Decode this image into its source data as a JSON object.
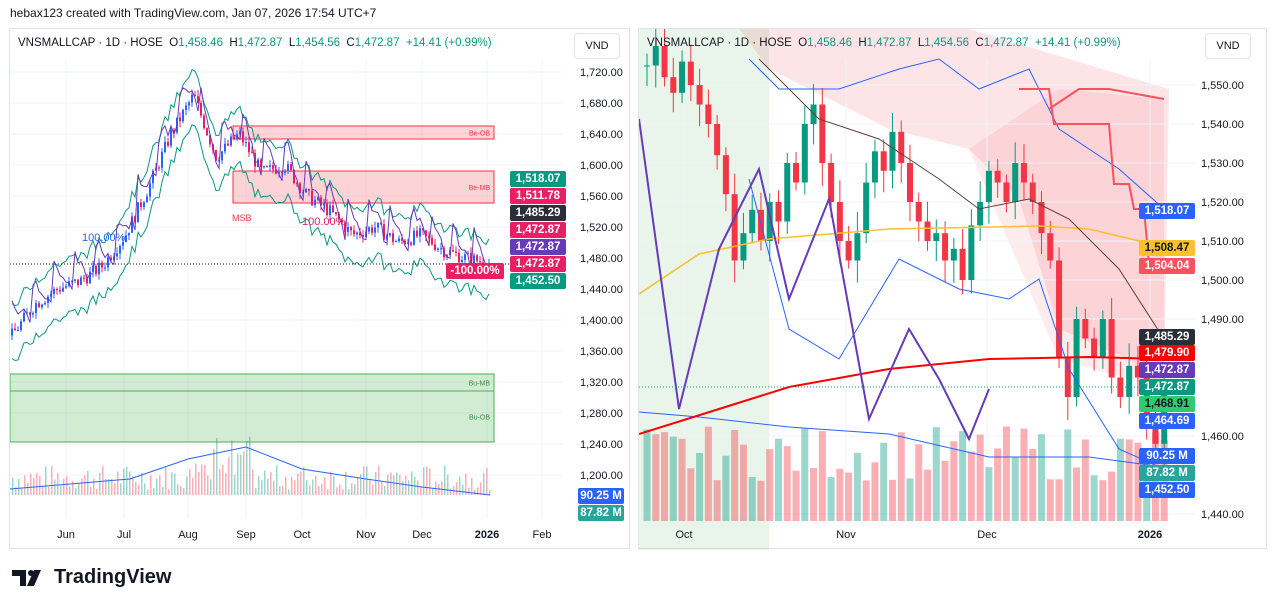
{
  "credit": "hebax123 created with TradingView.com, Jan 07, 2026 17:54 UTC+7",
  "legend": {
    "symbol_left": "VNSMALLCAP · 1D · HOSE",
    "symbol_right": "VNSMALLCAP · 1D · HOSE",
    "o_label": "O",
    "o": "1,458.46",
    "h_label": "H",
    "h": "1,472.87",
    "l_label": "L",
    "l": "1,454.56",
    "c_label": "C",
    "c": "1,472.87",
    "change": "+14.41 (+0.99%)"
  },
  "currency": "VND",
  "brand": "TradingView",
  "colors": {
    "up": "#089981",
    "down": "#f23645",
    "accent": "#2962ff"
  },
  "chart_data": [
    {
      "type": "candlestick",
      "panel": "left",
      "title": "VNSMALLCAP · 1D · HOSE",
      "x_ticks": [
        "Jun",
        "Jul",
        "Aug",
        "Sep",
        "Oct",
        "Nov",
        "Dec",
        "2026",
        "Feb"
      ],
      "y_ticks": [
        "1,720.00",
        "1,680.00",
        "1,640.00",
        "1,600.00",
        "1,560.00",
        "1,520.00",
        "1,480.00",
        "1,440.00",
        "1,400.00",
        "1,360.00",
        "1,320.00",
        "1,280.00",
        "1,240.00",
        "1,200.00"
      ],
      "ylim": [
        1180,
        1740
      ],
      "approx_close_anchors": [
        1380,
        1420,
        1440,
        1450,
        1470,
        1510,
        1570,
        1640,
        1690,
        1610,
        1640,
        1590,
        1600,
        1560,
        1540,
        1510,
        1520,
        1500,
        1510,
        1490,
        1480,
        1472.87
      ],
      "zones": [
        {
          "label": "Be-OB",
          "range": [
            1640,
            1630
          ]
        },
        {
          "label": "Be-MB",
          "range": [
            1587,
            1548
          ]
        },
        {
          "label": "Bu-MB",
          "range": [
            1331,
            1310
          ]
        },
        {
          "label": "Bu-OB",
          "range": [
            1310,
            1244
          ]
        }
      ],
      "annotations": [
        "100.00%",
        "MSB",
        "100.00%"
      ],
      "price_tags": [
        {
          "v": "1,518.07",
          "c": "#089981"
        },
        {
          "v": "1,511.78",
          "c": "#e91e63"
        },
        {
          "v": "1,485.29",
          "c": "#2a2e39"
        },
        {
          "v": "1,472.87",
          "c": "#e91e63"
        },
        {
          "v": "1,472.87",
          "c": "#673ab7"
        },
        {
          "v": "1,472.87",
          "c": "#e91e63"
        },
        {
          "v": "1,452.50",
          "c": "#089981"
        }
      ],
      "percent_tag": "-100.00%",
      "volume_tags": [
        {
          "v": "90.25 M",
          "c": "#2962ff"
        },
        {
          "v": "87.82 M",
          "c": "#26a69a"
        }
      ]
    },
    {
      "type": "candlestick",
      "panel": "right",
      "title": "VNSMALLCAP · 1D · HOSE",
      "x_ticks": [
        "Oct",
        "Nov",
        "Dec",
        "2026"
      ],
      "y_ticks": [
        "1,550.00",
        "1,540.00",
        "1,530.00",
        "1,520.00",
        "1,510.00",
        "1,500.00",
        "1,490.00",
        "1,460.00",
        "1,440.00"
      ],
      "ylim": [
        1438,
        1560
      ],
      "approx_closes": [
        1555,
        1560,
        1552,
        1548,
        1556,
        1550,
        1545,
        1540,
        1532,
        1522,
        1505,
        1512,
        1518,
        1510,
        1520,
        1515,
        1530,
        1525,
        1540,
        1545,
        1530,
        1520,
        1510,
        1505,
        1512,
        1525,
        1533,
        1528,
        1538,
        1530,
        1520,
        1515,
        1510,
        1512,
        1505,
        1508,
        1500,
        1514,
        1520,
        1528,
        1525,
        1520,
        1530,
        1525,
        1520,
        1512,
        1505,
        1480,
        1470,
        1490,
        1485,
        1480,
        1490,
        1475,
        1470,
        1478,
        1475,
        1465,
        1458,
        1472.87
      ],
      "price_tags": [
        {
          "v": "1,518.07",
          "c": "#2962ff"
        },
        {
          "v": "1,508.47",
          "c": "#fbc02d"
        },
        {
          "v": "1,504.04",
          "c": "#f7525f"
        },
        {
          "v": "1,485.29",
          "c": "#2a2e39"
        },
        {
          "v": "1,479.90",
          "c": "#ff0000"
        },
        {
          "v": "1,472.87",
          "c": "#673ab7"
        },
        {
          "v": "1,472.87",
          "c": "#089981"
        },
        {
          "v": "1,468.91",
          "c": "#2ecc71"
        },
        {
          "v": "1,464.69",
          "c": "#2962ff"
        },
        {
          "v": "90.25 M",
          "c": "#2962ff"
        },
        {
          "v": "87.82 M",
          "c": "#26a69a"
        },
        {
          "v": "1,452.50",
          "c": "#2962ff"
        }
      ]
    }
  ]
}
